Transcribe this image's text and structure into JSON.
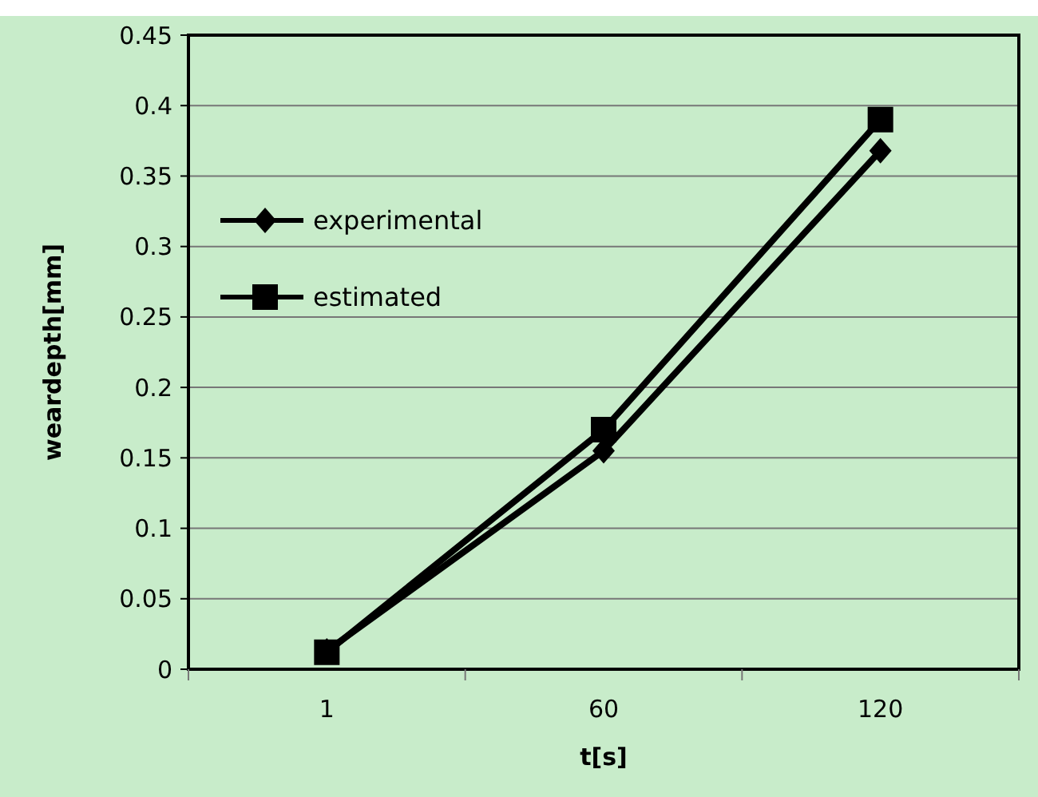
{
  "chart_data": {
    "type": "line",
    "xlabel": "t[s]",
    "ylabel": "weardepth[mm]",
    "categories": [
      "1",
      "60",
      "120"
    ],
    "series": [
      {
        "name": "experimental",
        "color": "#000000",
        "marker": "diamond",
        "values": [
          0.013,
          0.155,
          0.368
        ]
      },
      {
        "name": "estimated",
        "color": "#000000",
        "marker": "square",
        "values": [
          0.012,
          0.17,
          0.39
        ]
      }
    ],
    "ylim": [
      0,
      0.45
    ],
    "yticks": [
      0,
      0.05,
      0.1,
      0.15,
      0.2,
      0.25,
      0.3,
      0.35,
      0.4,
      0.45
    ],
    "grid": "y",
    "legend": "top left",
    "line_style": "solid"
  }
}
